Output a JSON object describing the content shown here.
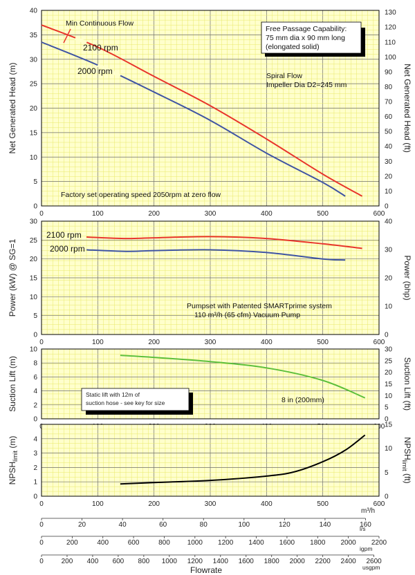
{
  "colors": {
    "red": "#e8342b",
    "blue": "#3f54a3",
    "green": "#5cbf3c",
    "black": "#000000",
    "panel": "#ffffcc"
  },
  "x_tick_labels": [
    "0",
    "100",
    "200",
    "300",
    "400",
    "500",
    "600"
  ],
  "chart_data": [
    {
      "id": "head",
      "type": "line",
      "xlabel": "",
      "ylabel": "Net Generated Head  (m)",
      "ylabel_right": "Net Generated Head  (ft)",
      "xlim": [
        0,
        600
      ],
      "ylim": [
        0,
        40
      ],
      "y_ticks": [
        "0",
        "5",
        "10",
        "15",
        "20",
        "25",
        "30",
        "35",
        "40"
      ],
      "y2_ticks": [
        "0",
        "10",
        "20",
        "30",
        "40",
        "50",
        "60",
        "70",
        "80",
        "90",
        "100",
        "110",
        "120",
        "130"
      ],
      "series": [
        {
          "name": "2100 rpm",
          "color": "red",
          "x": [
            0,
            100,
            200,
            300,
            400,
            500,
            570
          ],
          "y": [
            37.0,
            32.5,
            26.5,
            20.5,
            13.7,
            6.5,
            2.0
          ]
        },
        {
          "name": "2000 rpm",
          "color": "blue",
          "x": [
            0,
            100,
            200,
            300,
            400,
            500,
            540
          ],
          "y": [
            33.5,
            28.8,
            23.3,
            17.5,
            10.8,
            4.8,
            2.0
          ]
        }
      ],
      "gaps": [
        {
          "series": 0,
          "from": 60,
          "to": 80
        },
        {
          "series": 1,
          "from": 100,
          "to": 140
        }
      ],
      "annotations": {
        "min_flow_label": "Min Continuous Flow",
        "free_passage_lines": [
          "Free Passage Capability:",
          "75 mm dia x 90 mm long",
          "(elongated solid)"
        ],
        "spiral_lines": [
          "Spiral Flow",
          "Impeller Dia D2=245 mm"
        ],
        "factory_note": "Factory set operating speed 2050rpm at zero flow"
      }
    },
    {
      "id": "power",
      "type": "line",
      "ylabel": "Power (kW) @ SG=1",
      "ylabel_right": "Power (bhp)",
      "xlim": [
        0,
        600
      ],
      "ylim": [
        0,
        30
      ],
      "y_ticks": [
        "0",
        "5",
        "10",
        "15",
        "20",
        "25",
        "30"
      ],
      "y2_ticks": [
        "0",
        "10",
        "20",
        "30",
        "40"
      ],
      "series": [
        {
          "name": "2100 rpm",
          "color": "red",
          "x": [
            80,
            150,
            200,
            300,
            400,
            500,
            570
          ],
          "y": [
            25.8,
            25.4,
            25.6,
            25.9,
            25.4,
            24.0,
            22.8
          ]
        },
        {
          "name": "2000 rpm",
          "color": "blue",
          "x": [
            80,
            150,
            200,
            300,
            400,
            500,
            540
          ],
          "y": [
            22.4,
            22.0,
            22.2,
            22.4,
            21.7,
            20.0,
            19.7
          ]
        }
      ],
      "annotations": {
        "pumpset_line1": "Pumpset with Patented SMARTprime system",
        "pumpset_line2": "110 m³/h (65 cfm) Vacuum Pump"
      }
    },
    {
      "id": "suction",
      "type": "line",
      "ylabel": "Suction Lift (m)",
      "ylabel_right": "Suction Lift (ft)",
      "xlim": [
        0,
        600
      ],
      "ylim": [
        0,
        10
      ],
      "y_ticks": [
        "0",
        "2",
        "4",
        "6",
        "8",
        "10"
      ],
      "y2_ticks": [
        "0",
        "5",
        "10",
        "15",
        "20",
        "25",
        "30"
      ],
      "series": [
        {
          "name": "8 in (200mm)",
          "color": "green",
          "x": [
            140,
            200,
            300,
            400,
            500,
            575
          ],
          "y": [
            9.1,
            8.8,
            8.2,
            7.3,
            5.5,
            3.0
          ]
        }
      ],
      "annotations": {
        "static_lines": [
          "Static lift with 12m of",
          "suction hose - see key for size"
        ],
        "series_label": "8 in (200mm)"
      }
    },
    {
      "id": "npsh",
      "type": "line",
      "ylabel": "NPSH",
      "ylabel_sub": "limit",
      "ylabel_unit": " (m)",
      "ylabel_right": "NPSH",
      "ylabel_right_sub": "limit",
      "ylabel_right_unit": " (ft)",
      "xlim": [
        0,
        600
      ],
      "ylim": [
        0,
        5
      ],
      "y_ticks": [
        "0",
        "1",
        "2",
        "3",
        "4"
      ],
      "y2_ticks": [
        "0",
        "5",
        "10",
        "15"
      ],
      "series": [
        {
          "name": "",
          "color": "black",
          "x": [
            140,
            200,
            300,
            400,
            450,
            500,
            540,
            575
          ],
          "y": [
            0.85,
            0.95,
            1.1,
            1.4,
            1.7,
            2.4,
            3.2,
            4.25
          ]
        }
      ]
    }
  ],
  "flow_scales": [
    {
      "unit": "m³/h",
      "max": 600,
      "ticks": [
        "0",
        "100",
        "200",
        "300",
        "400",
        "500",
        "600"
      ]
    },
    {
      "unit": "l/s",
      "max": 166.67,
      "ticks": [
        "0",
        "20",
        "40",
        "60",
        "80",
        "100",
        "120",
        "140",
        "160"
      ]
    },
    {
      "unit": "igpm",
      "max": 2200,
      "ticks": [
        "0",
        "200",
        "400",
        "600",
        "800",
        "1000",
        "1200",
        "1400",
        "1600",
        "1800",
        "2000",
        "2200"
      ]
    },
    {
      "unit": "usgpm",
      "max": 2640,
      "ticks": [
        "0",
        "200",
        "400",
        "600",
        "800",
        "1000",
        "1200",
        "1400",
        "1600",
        "1800",
        "2000",
        "2200",
        "2400",
        "2600"
      ]
    }
  ],
  "flowrate_label": "Flowrate"
}
